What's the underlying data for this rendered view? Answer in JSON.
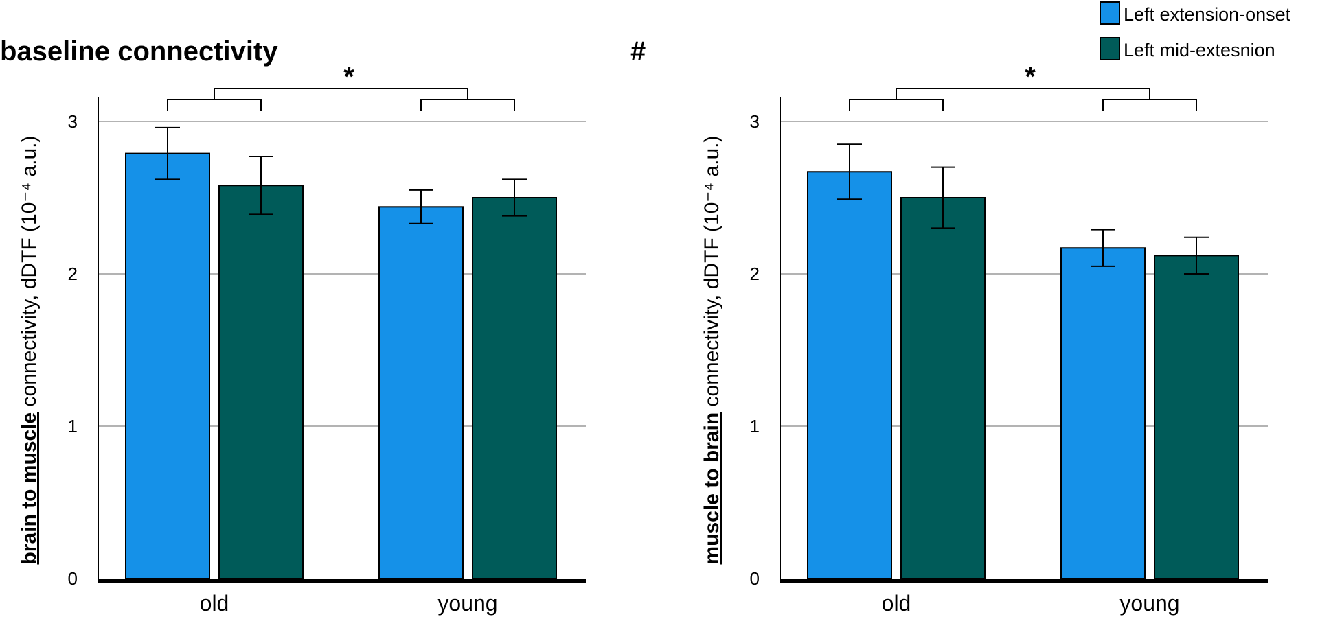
{
  "chart_data": [
    {
      "type": "bar",
      "title": "baseline connectivity",
      "ylabel_underlined": "brain to muscle",
      "ylabel_rest": " connectivity, dDTF (10⁻⁴ a.u.)",
      "categories": [
        "old",
        "young"
      ],
      "ylim": [
        0,
        3
      ],
      "yticks": [
        "0",
        "1",
        "2",
        "3"
      ],
      "grid": true,
      "series": [
        {
          "name": "Left extension-onset",
          "color": "#1591e8",
          "values": [
            2.79,
            2.44
          ],
          "errors": [
            0.17,
            0.11
          ]
        },
        {
          "name": "Left mid-extesnion",
          "color": "#005b59",
          "values": [
            2.58,
            2.5
          ],
          "errors": [
            0.19,
            0.12
          ]
        }
      ],
      "significance": "*"
    },
    {
      "type": "bar",
      "title": "#",
      "ylabel_underlined": "muscle to brain",
      "ylabel_rest": " connectivity, dDTF (10⁻⁴ a.u.)",
      "categories": [
        "old",
        "young"
      ],
      "ylim": [
        0,
        3
      ],
      "yticks": [
        "0",
        "1",
        "2",
        "3"
      ],
      "grid": true,
      "series": [
        {
          "name": "Left extension-onset",
          "color": "#1591e8",
          "values": [
            2.67,
            2.17
          ],
          "errors": [
            0.18,
            0.12
          ]
        },
        {
          "name": "Left mid-extesnion",
          "color": "#005b59",
          "values": [
            2.5,
            2.12
          ],
          "errors": [
            0.2,
            0.12
          ]
        }
      ],
      "significance": "*"
    }
  ],
  "legend": {
    "position": "top-right",
    "entries": [
      {
        "label": "Left extension-onset",
        "color": "#1591e8"
      },
      {
        "label": "Left mid-extesnion",
        "color": "#005b59"
      }
    ]
  }
}
